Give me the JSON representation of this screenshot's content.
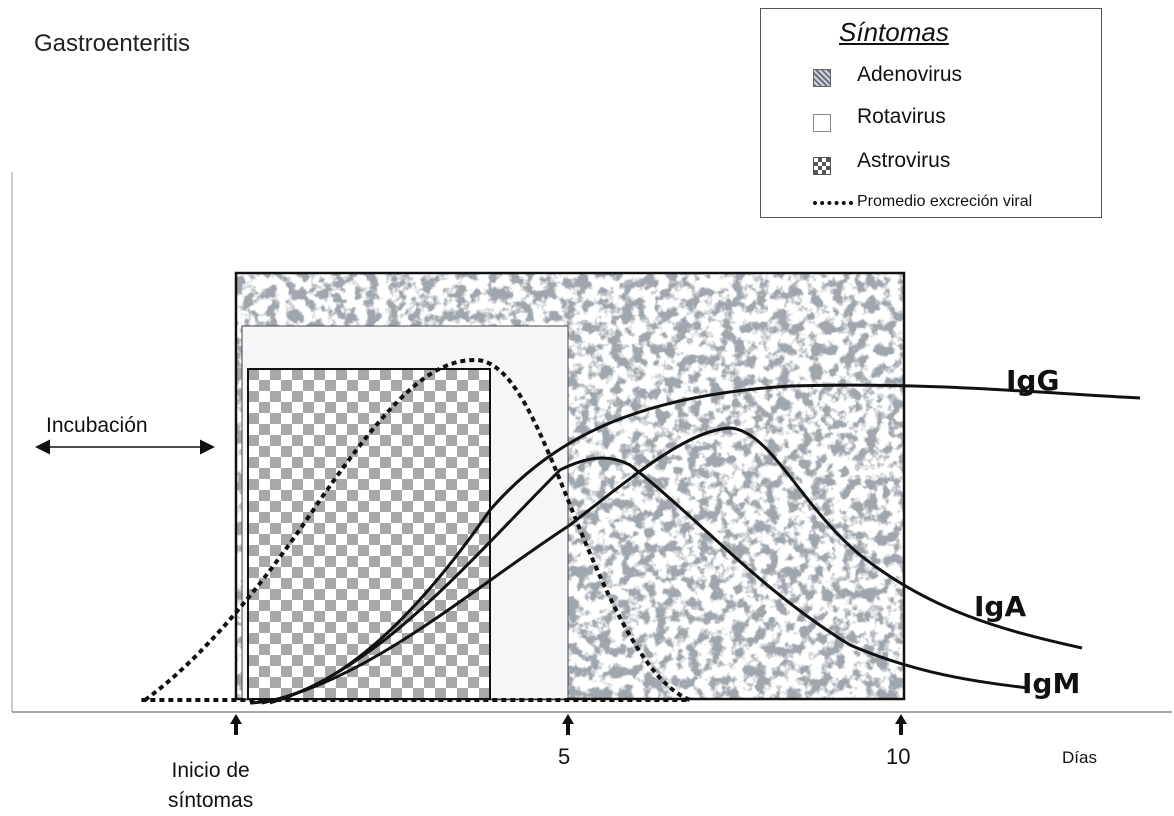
{
  "title": "Gastroenteritis",
  "legend": {
    "title": "Síntomas",
    "items": [
      {
        "label": "Adenovirus",
        "swatch": "noise"
      },
      {
        "label": "Rotavirus",
        "swatch": "plain"
      },
      {
        "label": "Astrovirus",
        "swatch": "checker"
      },
      {
        "label": "Promedio excreción viral",
        "swatch": "dotted"
      }
    ]
  },
  "annotations": {
    "incubation": "Incubación",
    "onset_line1": "Inicio de",
    "onset_line2": "síntomas",
    "days_unit": "Días"
  },
  "x_ticks": [
    "5",
    "10"
  ],
  "curves": {
    "igg": "IgG",
    "iga": "IgA",
    "igm": "IgM"
  },
  "colors": {
    "line": "#111111",
    "rotavirus_fill": "#f6f5f7",
    "checker_dark": "#a8a8a8",
    "checker_light": "#ffffff"
  }
}
